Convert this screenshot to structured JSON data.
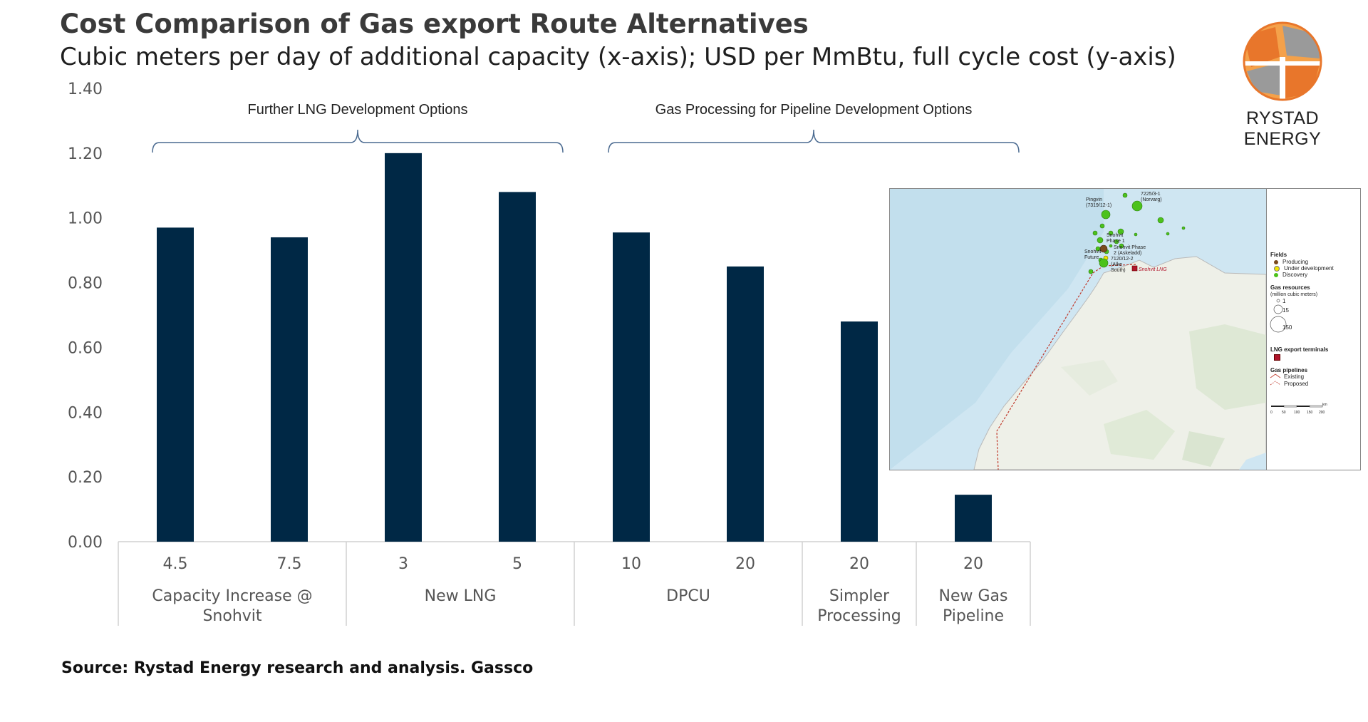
{
  "header": {
    "title": "Cost Comparison of Gas export Route Alternatives",
    "subtitle": "Cubic meters per day of additional capacity (x-axis); USD per MmBtu, full cycle cost (y-axis)"
  },
  "logo": {
    "name": "RYSTAD ENERGY",
    "icon": "globe-icon",
    "colors": [
      "#e8762b",
      "#f4a14a",
      "#9a9a9a"
    ]
  },
  "footer": {
    "source": "Source: Rystad Energy research and analysis. Gassco"
  },
  "chart_data": {
    "type": "bar",
    "title": "Cost Comparison of Gas export Route Alternatives",
    "xlabel": "Cubic meters per day of additional capacity",
    "ylabel": "USD per MmBtu, full cycle cost",
    "ylim": [
      0,
      1.4
    ],
    "yticks": [
      "0.00",
      "0.20",
      "0.40",
      "0.60",
      "0.80",
      "1.00",
      "1.20",
      "1.40"
    ],
    "categories": [
      "4.5",
      "7.5",
      "3",
      "5",
      "10",
      "20",
      "20",
      "20"
    ],
    "values": [
      0.97,
      0.94,
      1.2,
      1.08,
      0.955,
      0.85,
      0.68,
      0.145
    ],
    "bar_color": "#002845",
    "groups": [
      {
        "label_line1": "Capacity Increase @",
        "label_line2": "Snohvit",
        "start": 0,
        "end": 1
      },
      {
        "label_line1": "New LNG",
        "label_line2": "",
        "start": 2,
        "end": 3
      },
      {
        "label_line1": "DPCU",
        "label_line2": "",
        "start": 4,
        "end": 5
      },
      {
        "label_line1": "Simpler",
        "label_line2": "Processing",
        "start": 6,
        "end": 6
      },
      {
        "label_line1": "New Gas",
        "label_line2": "Pipeline",
        "start": 7,
        "end": 7
      }
    ],
    "annotations": [
      {
        "text": "Further LNG Development Options",
        "from_bar": 0,
        "to_bar": 3
      },
      {
        "text": "Gas Processing for Pipeline Development Options",
        "from_bar": 4,
        "to_bar": 7
      }
    ],
    "grid": false
  },
  "map": {
    "fields": [
      {
        "label": "Pingvin\n(7319/12-1)"
      },
      {
        "label": "7225/3-1\n(Norvarg)"
      },
      {
        "label": "Snohvit\nPhase 1"
      },
      {
        "label": "Snohvit Phase\n2 (Askeladd)"
      },
      {
        "label": "7120/12-2\n(Alke\nSouth)"
      },
      {
        "label": "Snohvit\nFuture"
      }
    ],
    "terminal_label": "Snohvit LNG",
    "legend": {
      "fields_title": "Fields",
      "fields": [
        "Producing",
        "Under development",
        "Discovery"
      ],
      "field_colors": [
        "#7a4a1e",
        "#f2e600",
        "#4cc21c"
      ],
      "resources_title": "Gas resources",
      "resources_subtitle": "(million cubic meters)",
      "resource_sizes": [
        "1",
        "15",
        "150"
      ],
      "terminals_title": "LNG export terminals",
      "pipelines_title": "Gas pipelines",
      "pipelines": [
        "Existing",
        "Proposed"
      ],
      "scale_label": "km",
      "scale_ticks": [
        "0",
        "50",
        "100",
        "150",
        "200"
      ]
    }
  }
}
